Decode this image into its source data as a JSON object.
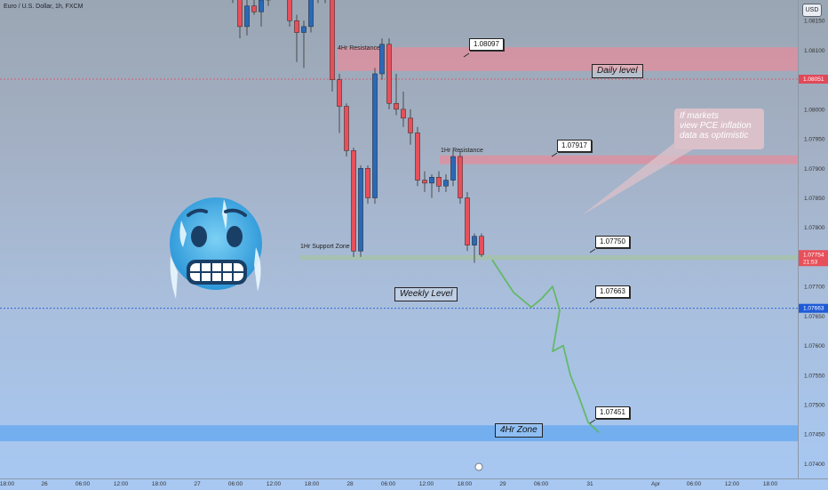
{
  "header": {
    "symbol": "Euro / U.S. Dollar, 1h, FXCM",
    "currency_button": "USD"
  },
  "colors": {
    "up": "#2a69b8",
    "down": "#e7505a",
    "resistance_zone": "#e08f9e",
    "support_zone": "#a6c2ac",
    "weekly_line": "#1f5bd6",
    "daily_line": "#e0495a",
    "zone_4hr": "#6aa9f0",
    "projection": "#5cb85c"
  },
  "chart_data": {
    "type": "candlestick",
    "symbol": "EURUSD",
    "timeframe": "1h",
    "ylim": [
      1.07375,
      1.08185
    ],
    "y_ticks": [
      "1.08150",
      "1.08100",
      "1.08050",
      "1.08000",
      "1.07950",
      "1.07900",
      "1.07850",
      "1.07800",
      "1.07750",
      "1.07700",
      "1.07650",
      "1.07600",
      "1.07550",
      "1.07500",
      "1.07450",
      "1.07400"
    ],
    "x_ticks": [
      "18:00",
      "26",
      "06:00",
      "12:00",
      "18:00",
      "27",
      "06:00",
      "12:00",
      "18:00",
      "28",
      "06:00",
      "12:00",
      "18:00",
      "29",
      "06:00",
      "31",
      "Apr",
      "06:00",
      "12:00",
      "18:00"
    ],
    "price_markers": [
      {
        "value": "1.08051",
        "color": "#e0495a"
      },
      {
        "value": "1.07754",
        "color": "#e7505a",
        "subtext": "21:53"
      },
      {
        "value": "1.07663",
        "color": "#1f5bd6"
      }
    ],
    "candles": [
      {
        "o": 1.0822,
        "h": 1.0824,
        "l": 1.0818,
        "c": 1.08195
      },
      {
        "o": 1.08195,
        "h": 1.082,
        "l": 1.0812,
        "c": 1.0814
      },
      {
        "o": 1.0814,
        "h": 1.0819,
        "l": 1.08125,
        "c": 1.08175
      },
      {
        "o": 1.08175,
        "h": 1.0821,
        "l": 1.0816,
        "c": 1.08165
      },
      {
        "o": 1.08165,
        "h": 1.08195,
        "l": 1.0814,
        "c": 1.08185
      },
      {
        "o": 1.08185,
        "h": 1.0823,
        "l": 1.08175,
        "c": 1.0822
      },
      {
        "o": 1.0822,
        "h": 1.0824,
        "l": 1.082,
        "c": 1.0821
      },
      {
        "o": 1.0821,
        "h": 1.0825,
        "l": 1.082,
        "c": 1.0824
      },
      {
        "o": 1.0824,
        "h": 1.0825,
        "l": 1.0814,
        "c": 1.0815
      },
      {
        "o": 1.0815,
        "h": 1.0816,
        "l": 1.0808,
        "c": 1.0813
      },
      {
        "o": 1.0813,
        "h": 1.0815,
        "l": 1.0807,
        "c": 1.0814
      },
      {
        "o": 1.0814,
        "h": 1.082,
        "l": 1.0813,
        "c": 1.0819
      },
      {
        "o": 1.0819,
        "h": 1.0824,
        "l": 1.0818,
        "c": 1.0823
      },
      {
        "o": 1.0823,
        "h": 1.0825,
        "l": 1.0818,
        "c": 1.0819
      },
      {
        "o": 1.0819,
        "h": 1.082,
        "l": 1.0803,
        "c": 1.0805
      },
      {
        "o": 1.0805,
        "h": 1.0806,
        "l": 1.0796,
        "c": 1.08005
      },
      {
        "o": 1.08005,
        "h": 1.0801,
        "l": 1.0792,
        "c": 1.0793
      },
      {
        "o": 1.0793,
        "h": 1.07935,
        "l": 1.0775,
        "c": 1.0776
      },
      {
        "o": 1.0776,
        "h": 1.07905,
        "l": 1.0775,
        "c": 1.079
      },
      {
        "o": 1.079,
        "h": 1.07905,
        "l": 1.0784,
        "c": 1.0785
      },
      {
        "o": 1.0785,
        "h": 1.0807,
        "l": 1.0784,
        "c": 1.0806
      },
      {
        "o": 1.0806,
        "h": 1.0812,
        "l": 1.0805,
        "c": 1.0811
      },
      {
        "o": 1.0811,
        "h": 1.0812,
        "l": 1.08,
        "c": 1.0801
      },
      {
        "o": 1.0801,
        "h": 1.0806,
        "l": 1.0799,
        "c": 1.08
      },
      {
        "o": 1.08,
        "h": 1.0803,
        "l": 1.0797,
        "c": 1.07985
      },
      {
        "o": 1.07985,
        "h": 1.08,
        "l": 1.0794,
        "c": 1.0796
      },
      {
        "o": 1.0796,
        "h": 1.0797,
        "l": 1.0787,
        "c": 1.0788
      },
      {
        "o": 1.0788,
        "h": 1.07895,
        "l": 1.0786,
        "c": 1.07875
      },
      {
        "o": 1.07875,
        "h": 1.0789,
        "l": 1.0785,
        "c": 1.07885
      },
      {
        "o": 1.07885,
        "h": 1.07895,
        "l": 1.0786,
        "c": 1.0787
      },
      {
        "o": 1.0787,
        "h": 1.0789,
        "l": 1.0786,
        "c": 1.0788
      },
      {
        "o": 1.0788,
        "h": 1.0793,
        "l": 1.0787,
        "c": 1.0792
      },
      {
        "o": 1.0792,
        "h": 1.0793,
        "l": 1.0784,
        "c": 1.0785
      },
      {
        "o": 1.0785,
        "h": 1.0786,
        "l": 1.0776,
        "c": 1.0777
      },
      {
        "o": 1.0777,
        "h": 1.0779,
        "l": 1.0774,
        "c": 1.07785
      },
      {
        "o": 1.07785,
        "h": 1.0779,
        "l": 1.0775,
        "c": 1.07754
      }
    ],
    "zones": [
      {
        "label": "4Hr Resistance",
        "from": 1.08065,
        "to": 1.08105
      },
      {
        "label": "1Hr Resistance",
        "from": 1.07907,
        "to": 1.07922
      },
      {
        "label": "1Hr Support Zone",
        "from": 1.07745,
        "to": 1.07753
      },
      {
        "label": "4Hr Zone",
        "from": 1.07438,
        "to": 1.07465
      }
    ],
    "levels": [
      {
        "label": "Daily level",
        "value": 1.08051
      },
      {
        "label": "Weekly Level",
        "value": 1.07663
      }
    ],
    "callouts": [
      "1.08097",
      "1.07917",
      "1.07750",
      "1.07663",
      "1.07451"
    ],
    "annotation": [
      "If markets",
      "view PCE inflation",
      "data as optimistic"
    ],
    "projection_path": [
      {
        "t": 37.0,
        "p": 1.07745
      },
      {
        "t": 40.0,
        "p": 1.0769
      },
      {
        "t": 42.5,
        "p": 1.07665
      },
      {
        "t": 44.0,
        "p": 1.0768
      },
      {
        "t": 45.5,
        "p": 1.077
      },
      {
        "t": 46.5,
        "p": 1.0766
      },
      {
        "t": 45.5,
        "p": 1.0759
      },
      {
        "t": 47.0,
        "p": 1.076
      },
      {
        "t": 48.0,
        "p": 1.0755
      },
      {
        "t": 49.0,
        "p": 1.0752
      },
      {
        "t": 50.5,
        "p": 1.0747
      },
      {
        "t": 52.0,
        "p": 1.07453
      }
    ]
  }
}
